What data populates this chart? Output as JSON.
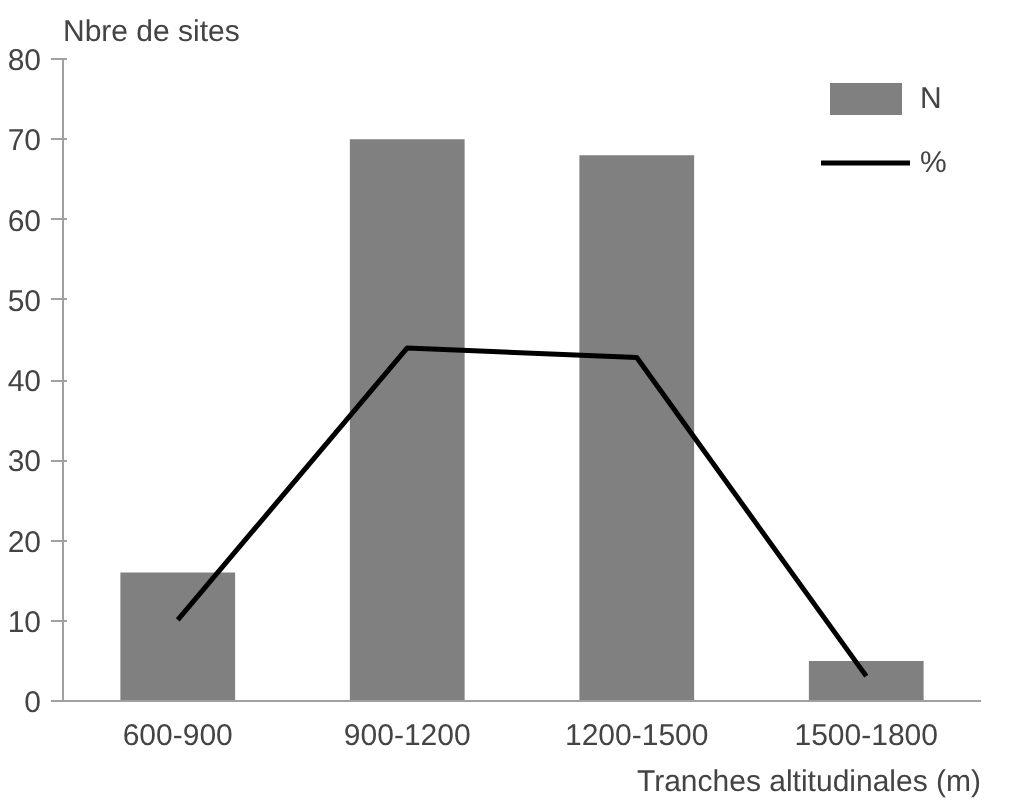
{
  "chart_data": {
    "type": "bar",
    "ylabel": "Nbre de sites",
    "xlabel": "Tranches altitudinales (m)",
    "categories": [
      "600-900",
      "900-1200",
      "1200-1500",
      "1500-1800"
    ],
    "series": [
      {
        "name": "N",
        "color": "#808080",
        "values": [
          16,
          70,
          68,
          5
        ]
      },
      {
        "name": "%",
        "type": "line",
        "color": "#000000",
        "values": [
          10.1,
          44,
          42.8,
          3.1
        ]
      }
    ],
    "ylim": [
      0,
      80
    ],
    "yticks": [
      0,
      10,
      20,
      30,
      40,
      50,
      60,
      70,
      80
    ],
    "grid": false,
    "legend": "top right"
  }
}
